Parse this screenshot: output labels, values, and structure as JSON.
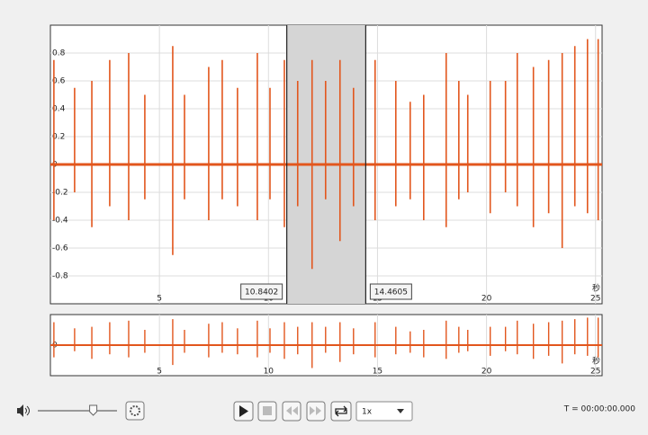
{
  "chart_data": {
    "type": "waveform",
    "color": "#e2561d",
    "x": [
      0.16,
      1.11,
      1.9,
      2.72,
      3.59,
      4.33,
      5.61,
      6.15,
      7.26,
      7.88,
      8.58,
      9.49,
      10.07,
      10.73,
      11.34,
      12.0,
      12.62,
      13.28,
      13.9,
      14.89,
      15.84,
      16.5,
      17.12,
      18.15,
      18.73,
      19.14,
      20.17,
      20.87,
      21.41,
      22.15,
      22.85,
      23.47,
      24.05,
      24.63,
      25.12
    ],
    "peaks": [
      0.75,
      0.55,
      0.6,
      0.75,
      0.8,
      0.5,
      0.85,
      0.5,
      0.7,
      0.75,
      0.55,
      0.8,
      0.55,
      0.75,
      0.6,
      0.75,
      0.6,
      0.75,
      0.55,
      0.75,
      0.6,
      0.45,
      0.5,
      0.8,
      0.6,
      0.5,
      0.6,
      0.6,
      0.8,
      0.7,
      0.75,
      0.8,
      0.85,
      0.9,
      0.9
    ],
    "troughs": [
      -0.4,
      -0.2,
      -0.45,
      -0.3,
      -0.4,
      -0.25,
      -0.65,
      -0.25,
      -0.4,
      -0.25,
      -0.3,
      -0.4,
      -0.25,
      -0.45,
      -0.3,
      -0.75,
      -0.25,
      -0.55,
      -0.3,
      -0.4,
      -0.3,
      -0.25,
      -0.4,
      -0.45,
      -0.25,
      -0.2,
      -0.35,
      -0.2,
      -0.3,
      -0.45,
      -0.35,
      -0.6,
      -0.3,
      -0.35,
      -0.4
    ],
    "xlim": [
      0,
      25.3
    ],
    "xticks": [
      5,
      10,
      15,
      20,
      25
    ],
    "ylim": [
      -1,
      1
    ],
    "yticks": [
      -0.8,
      -0.6,
      -0.4,
      -0.2,
      0,
      0.2,
      0.4,
      0.6,
      0.8
    ],
    "grid": true,
    "x_unit": "秒",
    "selection": {
      "start": 10.8402,
      "end": 14.4605
    },
    "overview": {
      "ylim": [
        -1,
        1
      ],
      "yticks": [
        0
      ]
    }
  },
  "controls": {
    "volume": 0.7,
    "speed": "1x",
    "time": "T = 00:00:00.000"
  }
}
